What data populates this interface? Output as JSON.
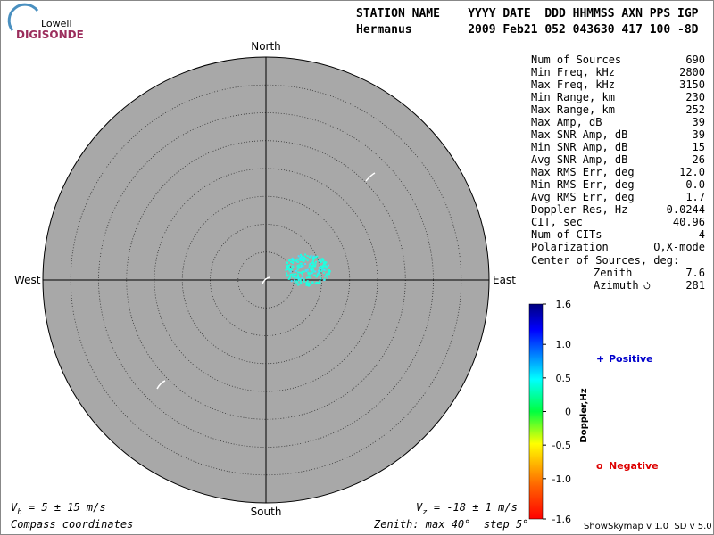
{
  "header": {
    "logo_top": "Lowell",
    "logo_bottom": "DIGISONDE",
    "columns": "STATION NAME    YYYY DATE  DDD HHMMSS AXN PPS IGP",
    "values": "Hermanus        2009 Feb21 052 043630 417 100 -8D"
  },
  "stats": [
    [
      "Num of Sources",
      "690"
    ],
    [
      "Min Freq, kHz",
      "2800"
    ],
    [
      "Max Freq, kHz",
      "3150"
    ],
    [
      "Min Range, km",
      "230"
    ],
    [
      "Max Range, km",
      "252"
    ],
    [
      "Max Amp, dB",
      "39"
    ],
    [
      "Max SNR Amp, dB",
      "39"
    ],
    [
      "Min SNR Amp, dB",
      "15"
    ],
    [
      "Avg SNR Amp, dB",
      "26"
    ],
    [
      "Max RMS Err, deg",
      "12.0"
    ],
    [
      "Min RMS Err, deg",
      "0.0"
    ],
    [
      "Avg RMS Err, deg",
      "1.7"
    ],
    [
      "Doppler Res, Hz",
      "0.0244"
    ],
    [
      "CIT, sec",
      "40.96"
    ],
    [
      "Num of CITs",
      "4"
    ],
    [
      "Polarization",
      "O,X-mode"
    ]
  ],
  "center": {
    "title": "Center of Sources, deg:",
    "zenith_label": "Zenith",
    "zenith": "7.6",
    "azimuth_label": "Azimuth",
    "azimuth": "281"
  },
  "compass": {
    "north": "North",
    "south": "South",
    "east": "East",
    "west": "West"
  },
  "colorbar": {
    "title": "Doppler,Hz",
    "lim": [
      -1.6,
      1.6
    ],
    "ticks": [
      1.6,
      {
        "value": 1.0,
        "label": "1.0"
      },
      0.5,
      0,
      -0.5,
      {
        "value": -1.0,
        "label": "-1.0"
      },
      -1.6
    ]
  },
  "legend": {
    "positive_symbol": "+",
    "positive": "Positive",
    "negative_symbol": "o",
    "negative": "Negative"
  },
  "footer": {
    "vh_v": "V",
    "vh_sub": "h",
    "vh_rest": " = 5 ± 15 m/s",
    "vz_v": "V",
    "vz_sub": "z",
    "vz_rest": " = -18 ± 1 m/s",
    "coords": "Compass coordinates",
    "zenith": "Zenith: max 40°  step 5°",
    "version": "ShowSkymap v 1.0  SD v 5.0"
  }
}
